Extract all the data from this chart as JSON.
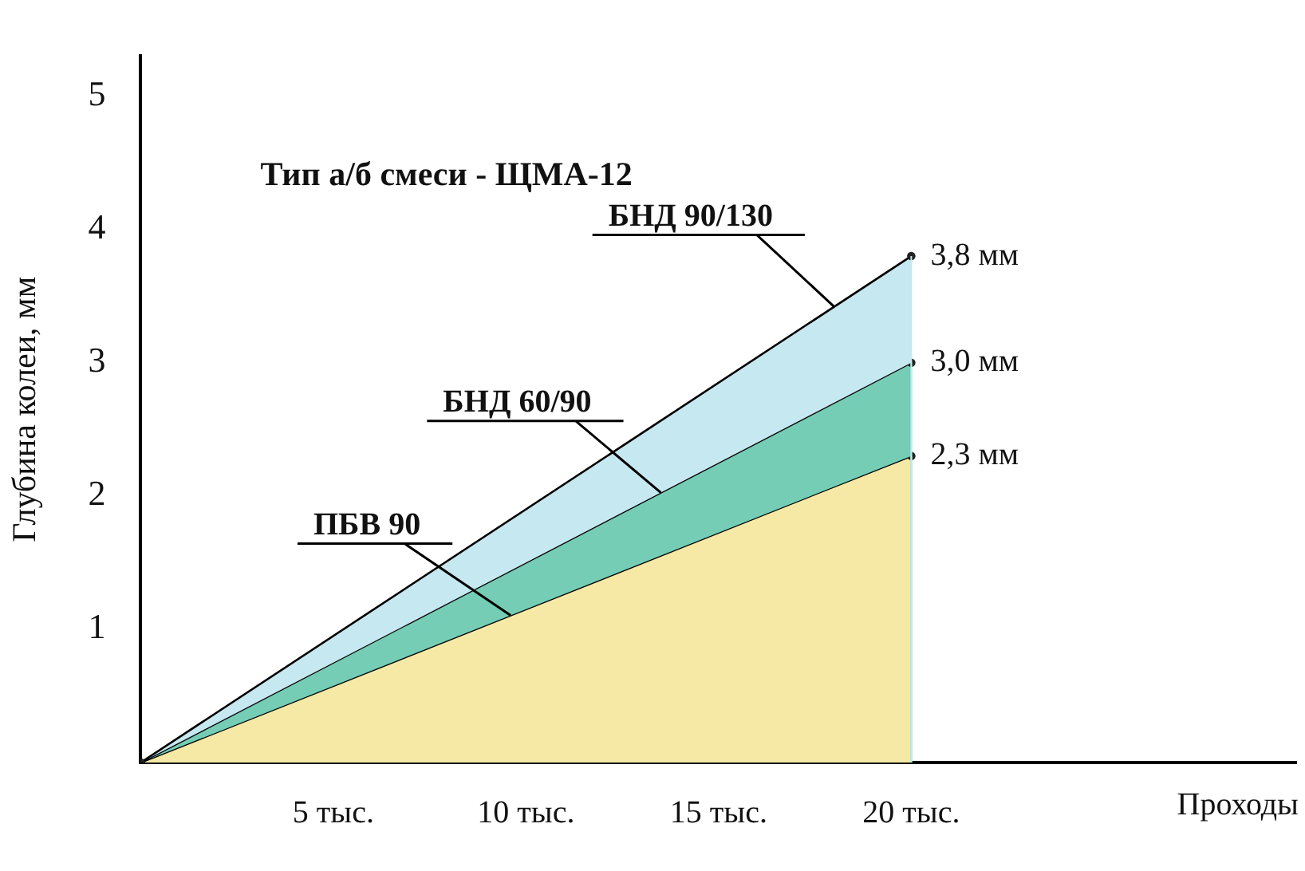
{
  "chart_data": {
    "type": "area",
    "title": "Тип а/б смеси - ЩМА-12",
    "xlabel": "Проходы",
    "ylabel": "Глубина колеи, мм",
    "x": [
      0,
      20
    ],
    "series": [
      {
        "color": "#f6e9a6",
        "values": [
          0,
          2.3
        ],
        "value_labels": [
          null,
          "2,3 мм"
        ]
      },
      {
        "color": "#74cdb4",
        "values": [
          0,
          3.0
        ],
        "value_labels": [
          null,
          "3,0 мм"
        ]
      },
      {
        "color": "#c6e8f0",
        "values": [
          0,
          3.8
        ],
        "value_labels": [
          null,
          "3,8 мм"
        ]
      }
    ],
    "annotations": [
      {
        "text": "ПБВ 90",
        "x": 9.6,
        "y": 1.104
      },
      {
        "text": "БНД 60/90",
        "x": 13.5,
        "y": 2.025
      },
      {
        "text": "БНД 90/130",
        "x": 18,
        "y": 3.42
      }
    ],
    "xlim": [
      0,
      30
    ],
    "xticks": [
      {
        "value": 5,
        "label": "5 тыс."
      },
      {
        "value": 10,
        "label": "10 тыс."
      },
      {
        "value": 15,
        "label": "15 тыс."
      },
      {
        "value": 20,
        "label": "20 тыс."
      }
    ],
    "ylim": [
      0,
      5.3
    ],
    "yticks": [
      1,
      2,
      3,
      4,
      5
    ],
    "grid": false,
    "legend": false,
    "marker": "circle",
    "line_style": "solid"
  }
}
